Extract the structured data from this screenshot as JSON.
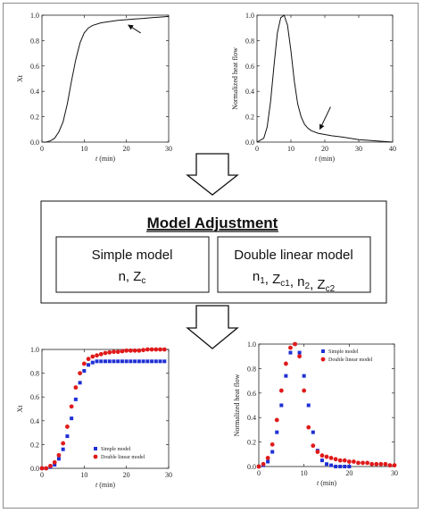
{
  "adjustment": {
    "title": "Model Adjustment",
    "simple": {
      "name": "Simple model",
      "params": [
        {
          "t": "n, Z"
        },
        {
          "s": "c"
        }
      ]
    },
    "double": {
      "name": "Double linear model",
      "params": [
        {
          "t": "n"
        },
        {
          "s": "1"
        },
        {
          "t": ", Z"
        },
        {
          "s": "c1"
        },
        {
          "t": ", n"
        },
        {
          "s": "2"
        },
        {
          "t": ", Z"
        },
        {
          "s": "c2"
        }
      ]
    }
  },
  "chart_data": [
    {
      "type": "line",
      "xlabel": "t (min)",
      "ylabel": "Xt",
      "xlim": [
        0,
        30
      ],
      "ylim": [
        0,
        1.0
      ],
      "xticks": [
        0,
        10,
        20,
        30
      ],
      "yticks": [
        "0.0",
        "0.2",
        "0.4",
        "0.6",
        "0.8",
        "1.0"
      ],
      "series": [
        {
          "x": [
            0,
            1,
            2,
            3,
            4,
            5,
            6,
            7,
            8,
            9,
            10,
            11,
            12,
            14,
            16,
            18,
            20,
            22,
            24,
            26,
            28,
            30
          ],
          "y": [
            0,
            0,
            0.01,
            0.03,
            0.08,
            0.16,
            0.3,
            0.48,
            0.65,
            0.78,
            0.86,
            0.9,
            0.92,
            0.94,
            0.95,
            0.96,
            0.965,
            0.97,
            0.975,
            0.98,
            0.985,
            0.99
          ]
        }
      ],
      "annotation": {
        "type": "arrow",
        "at": [
          20,
          0.93
        ]
      }
    },
    {
      "type": "line",
      "xlabel": "t (min)",
      "ylabel": "Normalized heat flow",
      "xlim": [
        0,
        40
      ],
      "ylim": [
        0,
        1.0
      ],
      "xticks": [
        0,
        10,
        20,
        30,
        40
      ],
      "yticks": [
        "0.0",
        "0.2",
        "0.4",
        "0.6",
        "0.8",
        "1.0"
      ],
      "series": [
        {
          "x": [
            0,
            2,
            3,
            4,
            5,
            6,
            7,
            8,
            9,
            10,
            11,
            12,
            13,
            14,
            15,
            16,
            18,
            20,
            22,
            25,
            30,
            35,
            40
          ],
          "y": [
            0,
            0.03,
            0.12,
            0.32,
            0.6,
            0.86,
            0.98,
            1.0,
            0.92,
            0.72,
            0.48,
            0.3,
            0.2,
            0.14,
            0.11,
            0.09,
            0.07,
            0.06,
            0.05,
            0.04,
            0.02,
            0.01,
            0.0
          ]
        }
      ],
      "annotation": {
        "type": "arrow",
        "at": [
          18,
          0.08
        ]
      }
    },
    {
      "type": "scatter",
      "xlabel": "t (min)",
      "ylabel": "Xt",
      "xlim": [
        0,
        30
      ],
      "ylim": [
        0,
        1.0
      ],
      "xticks": [
        0,
        10,
        20,
        30
      ],
      "yticks": [
        "0.0",
        "0.2",
        "0.4",
        "0.6",
        "0.8",
        "1.0"
      ],
      "legend": [
        "Simple model",
        "Double linear model"
      ],
      "series": [
        {
          "name": "Simple model",
          "marker": "square",
          "color": "#1f2fd6",
          "x": [
            0,
            1,
            2,
            3,
            4,
            5,
            6,
            7,
            8,
            9,
            10,
            11,
            12,
            13,
            14,
            15,
            16,
            17,
            18,
            19,
            20,
            21,
            22,
            23,
            24,
            25,
            26,
            27,
            28,
            29
          ],
          "y": [
            0,
            0,
            0.01,
            0.03,
            0.08,
            0.16,
            0.27,
            0.42,
            0.58,
            0.72,
            0.82,
            0.87,
            0.89,
            0.9,
            0.9,
            0.9,
            0.9,
            0.9,
            0.9,
            0.9,
            0.9,
            0.9,
            0.9,
            0.9,
            0.9,
            0.9,
            0.9,
            0.9,
            0.9,
            0.9
          ]
        },
        {
          "name": "Double linear model",
          "marker": "circle",
          "color": "#e01a1a",
          "x": [
            0,
            1,
            2,
            3,
            4,
            5,
            6,
            7,
            8,
            9,
            10,
            11,
            12,
            13,
            14,
            15,
            16,
            17,
            18,
            19,
            20,
            21,
            22,
            23,
            24,
            25,
            26,
            27,
            28,
            29
          ],
          "y": [
            0,
            0,
            0.02,
            0.05,
            0.11,
            0.21,
            0.35,
            0.52,
            0.68,
            0.8,
            0.88,
            0.92,
            0.94,
            0.95,
            0.96,
            0.97,
            0.975,
            0.98,
            0.98,
            0.985,
            0.99,
            0.99,
            0.99,
            0.99,
            0.995,
            1.0,
            1.0,
            1.0,
            1.0,
            1.0
          ]
        }
      ]
    },
    {
      "type": "scatter",
      "xlabel": "t (min)",
      "ylabel": "Normalized heat flow",
      "xlim": [
        0,
        30
      ],
      "ylim": [
        0,
        1.0
      ],
      "xticks": [
        0,
        10,
        20,
        30
      ],
      "yticks": [
        "0.0",
        "0.2",
        "0.4",
        "0.6",
        "0.8",
        "1.0"
      ],
      "legend": [
        "Simple model",
        "Double linear model"
      ],
      "series": [
        {
          "name": "Simple model",
          "marker": "square",
          "color": "#1f2fd6",
          "x": [
            0,
            1,
            2,
            3,
            4,
            5,
            6,
            7,
            8,
            9,
            10,
            11,
            12,
            13,
            14,
            15,
            16,
            17,
            18,
            19,
            20
          ],
          "y": [
            0,
            0.01,
            0.04,
            0.12,
            0.28,
            0.5,
            0.74,
            0.93,
            1.0,
            0.93,
            0.74,
            0.5,
            0.28,
            0.13,
            0.05,
            0.02,
            0.01,
            0,
            0,
            0,
            0
          ]
        },
        {
          "name": "Double linear model",
          "marker": "circle",
          "color": "#e01a1a",
          "x": [
            0,
            1,
            2,
            3,
            4,
            5,
            6,
            7,
            8,
            9,
            10,
            11,
            12,
            13,
            14,
            15,
            16,
            17,
            18,
            19,
            20,
            21,
            22,
            23,
            24,
            25,
            26,
            27,
            28,
            29,
            30
          ],
          "y": [
            0,
            0.02,
            0.07,
            0.18,
            0.38,
            0.62,
            0.84,
            0.97,
            1.0,
            0.9,
            0.62,
            0.32,
            0.17,
            0.12,
            0.09,
            0.08,
            0.07,
            0.06,
            0.05,
            0.05,
            0.04,
            0.04,
            0.03,
            0.03,
            0.03,
            0.02,
            0.02,
            0.02,
            0.02,
            0.01,
            0.01
          ]
        }
      ]
    }
  ]
}
